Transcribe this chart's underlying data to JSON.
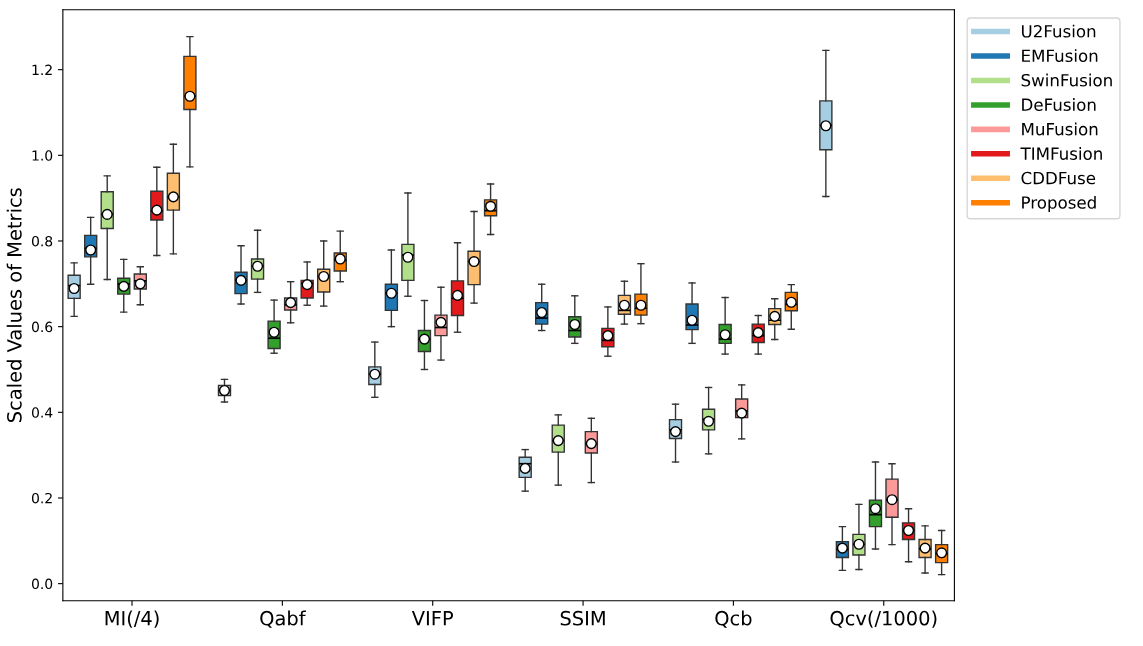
{
  "chart_data": {
    "type": "box",
    "ylabel": "Scaled Values of Metrics",
    "categories": [
      "MI(/4)",
      "Qabf",
      "VIFP",
      "SSIM",
      "Qcb",
      "Qcv(/1000)"
    ],
    "ylim": [
      -0.04,
      1.34
    ],
    "yticks": [
      {
        "value": 0,
        "label": "0.0"
      },
      0.2,
      0.4,
      0.6,
      0.8,
      {
        "value": 1,
        "label": "1.0"
      },
      1.2
    ],
    "legend": "top right",
    "grid": false,
    "series": [
      {
        "name": "U2Fusion",
        "color": "#a6cee3",
        "boxes": [
          {
            "low": 0.624,
            "q1": 0.666,
            "median": 0.696,
            "q3": 0.72,
            "high": 0.749,
            "mean": 0.689
          },
          {
            "low": 0.424,
            "q1": 0.439,
            "median": 0.451,
            "q3": 0.463,
            "high": 0.477,
            "mean": 0.451
          },
          {
            "low": 0.435,
            "q1": 0.465,
            "median": 0.489,
            "q3": 0.506,
            "high": 0.564,
            "mean": 0.489
          },
          {
            "low": 0.216,
            "q1": 0.248,
            "median": 0.28,
            "q3": 0.295,
            "high": 0.313,
            "mean": 0.269
          },
          {
            "low": 0.284,
            "q1": 0.339,
            "median": 0.359,
            "q3": 0.383,
            "high": 0.419,
            "mean": 0.355
          },
          {
            "low": 0.904,
            "q1": 1.013,
            "median": 1.07,
            "q3": 1.127,
            "high": 1.245,
            "mean": 1.069
          }
        ]
      },
      {
        "name": "EMFusion",
        "color": "#1f78b4",
        "boxes": [
          {
            "low": 0.699,
            "q1": 0.763,
            "median": 0.783,
            "q3": 0.813,
            "high": 0.855,
            "mean": 0.779
          },
          {
            "low": 0.653,
            "q1": 0.677,
            "median": 0.708,
            "q3": 0.727,
            "high": 0.789,
            "mean": 0.708
          },
          {
            "low": 0.6,
            "q1": 0.638,
            "median": 0.678,
            "q3": 0.699,
            "high": 0.779,
            "mean": 0.678
          },
          {
            "low": 0.591,
            "q1": 0.606,
            "median": 0.62,
            "q3": 0.656,
            "high": 0.699,
            "mean": 0.633
          },
          {
            "low": 0.561,
            "q1": 0.593,
            "median": 0.604,
            "q3": 0.653,
            "high": 0.702,
            "mean": 0.615
          },
          {
            "low": 0.031,
            "q1": 0.061,
            "median": 0.08,
            "q3": 0.098,
            "high": 0.133,
            "mean": 0.083
          }
        ]
      },
      {
        "name": "SwinFusion",
        "color": "#b2df8a",
        "boxes": [
          {
            "low": 0.71,
            "q1": 0.829,
            "median": 0.862,
            "q3": 0.915,
            "high": 0.952,
            "mean": 0.862
          },
          {
            "low": 0.68,
            "q1": 0.711,
            "median": 0.741,
            "q3": 0.758,
            "high": 0.825,
            "mean": 0.741
          },
          {
            "low": 0.671,
            "q1": 0.708,
            "median": 0.767,
            "q3": 0.792,
            "high": 0.912,
            "mean": 0.762
          },
          {
            "low": 0.23,
            "q1": 0.307,
            "median": 0.334,
            "q3": 0.37,
            "high": 0.394,
            "mean": 0.334
          },
          {
            "low": 0.303,
            "q1": 0.359,
            "median": 0.384,
            "q3": 0.407,
            "high": 0.458,
            "mean": 0.379
          },
          {
            "low": 0.033,
            "q1": 0.067,
            "median": 0.092,
            "q3": 0.115,
            "high": 0.185,
            "mean": 0.092
          }
        ]
      },
      {
        "name": "DeFusion",
        "color": "#33a02c",
        "boxes": [
          {
            "low": 0.634,
            "q1": 0.676,
            "median": 0.7,
            "q3": 0.713,
            "high": 0.757,
            "mean": 0.694
          },
          {
            "low": 0.538,
            "q1": 0.549,
            "median": 0.573,
            "q3": 0.613,
            "high": 0.662,
            "mean": 0.587
          },
          {
            "low": 0.5,
            "q1": 0.542,
            "median": 0.571,
            "q3": 0.591,
            "high": 0.661,
            "mean": 0.571
          },
          {
            "low": 0.561,
            "q1": 0.576,
            "median": 0.591,
            "q3": 0.623,
            "high": 0.672,
            "mean": 0.605
          },
          {
            "low": 0.536,
            "q1": 0.561,
            "median": 0.571,
            "q3": 0.605,
            "high": 0.668,
            "mean": 0.581
          },
          {
            "low": 0.081,
            "q1": 0.133,
            "median": 0.161,
            "q3": 0.195,
            "high": 0.284,
            "mean": 0.175
          }
        ]
      },
      {
        "name": "MuFusion",
        "color": "#fb9a99",
        "boxes": [
          {
            "low": 0.651,
            "q1": 0.688,
            "median": 0.707,
            "q3": 0.723,
            "high": 0.74,
            "mean": 0.7
          },
          {
            "low": 0.609,
            "q1": 0.639,
            "median": 0.651,
            "q3": 0.667,
            "high": 0.705,
            "mean": 0.656
          },
          {
            "low": 0.522,
            "q1": 0.579,
            "median": 0.598,
            "q3": 0.627,
            "high": 0.692,
            "mean": 0.61
          },
          {
            "low": 0.236,
            "q1": 0.305,
            "median": 0.327,
            "q3": 0.355,
            "high": 0.386,
            "mean": 0.327
          },
          {
            "low": 0.338,
            "q1": 0.388,
            "median": 0.403,
            "q3": 0.431,
            "high": 0.464,
            "mean": 0.398
          },
          {
            "low": 0.091,
            "q1": 0.155,
            "median": 0.196,
            "q3": 0.244,
            "high": 0.28,
            "mean": 0.196
          }
        ]
      },
      {
        "name": "TIMFusion",
        "color": "#e31a1c",
        "boxes": [
          {
            "low": 0.766,
            "q1": 0.849,
            "median": 0.87,
            "q3": 0.916,
            "high": 0.972,
            "mean": 0.872
          },
          {
            "low": 0.65,
            "q1": 0.667,
            "median": 0.701,
            "q3": 0.708,
            "high": 0.751,
            "mean": 0.698
          },
          {
            "low": 0.587,
            "q1": 0.626,
            "median": 0.666,
            "q3": 0.707,
            "high": 0.796,
            "mean": 0.673
          },
          {
            "low": 0.531,
            "q1": 0.553,
            "median": 0.568,
            "q3": 0.596,
            "high": 0.646,
            "mean": 0.579
          },
          {
            "low": 0.536,
            "q1": 0.563,
            "median": 0.579,
            "q3": 0.606,
            "high": 0.626,
            "mean": 0.586
          },
          {
            "low": 0.051,
            "q1": 0.103,
            "median": 0.124,
            "q3": 0.142,
            "high": 0.175,
            "mean": 0.124
          }
        ]
      },
      {
        "name": "CDDFuse",
        "color": "#fdbf6f",
        "boxes": [
          {
            "low": 0.77,
            "q1": 0.872,
            "median": 0.903,
            "q3": 0.958,
            "high": 1.026,
            "mean": 0.903
          },
          {
            "low": 0.648,
            "q1": 0.681,
            "median": 0.717,
            "q3": 0.734,
            "high": 0.8,
            "mean": 0.717
          },
          {
            "low": 0.655,
            "q1": 0.698,
            "median": 0.752,
            "q3": 0.776,
            "high": 0.869,
            "mean": 0.752
          },
          {
            "low": 0.606,
            "q1": 0.629,
            "median": 0.638,
            "q3": 0.673,
            "high": 0.706,
            "mean": 0.65
          },
          {
            "low": 0.57,
            "q1": 0.605,
            "median": 0.615,
            "q3": 0.642,
            "high": 0.665,
            "mean": 0.624
          },
          {
            "low": 0.025,
            "q1": 0.061,
            "median": 0.081,
            "q3": 0.103,
            "high": 0.135,
            "mean": 0.083
          }
        ]
      },
      {
        "name": "Proposed",
        "color": "#ff7f00",
        "boxes": [
          {
            "low": 0.973,
            "q1": 1.107,
            "median": 1.138,
            "q3": 1.231,
            "high": 1.277,
            "mean": 1.138
          },
          {
            "low": 0.705,
            "q1": 0.73,
            "median": 0.755,
            "q3": 0.772,
            "high": 0.823,
            "mean": 0.758
          },
          {
            "low": 0.815,
            "q1": 0.859,
            "median": 0.871,
            "q3": 0.896,
            "high": 0.933,
            "mean": 0.881
          },
          {
            "low": 0.607,
            "q1": 0.627,
            "median": 0.643,
            "q3": 0.676,
            "high": 0.747,
            "mean": 0.65
          },
          {
            "low": 0.594,
            "q1": 0.637,
            "median": 0.652,
            "q3": 0.68,
            "high": 0.698,
            "mean": 0.657
          },
          {
            "low": 0.021,
            "q1": 0.049,
            "median": 0.07,
            "q3": 0.091,
            "high": 0.124,
            "mean": 0.072
          }
        ]
      }
    ]
  }
}
